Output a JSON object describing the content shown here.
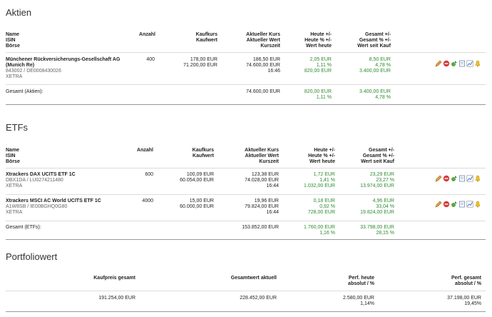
{
  "aktien": {
    "title": "Aktien",
    "headers": {
      "name": [
        "Name",
        "ISIN",
        "Börse"
      ],
      "anzahl": "Anzahl",
      "kauf": [
        "Kaufkurs",
        "Kaufwert"
      ],
      "aktuell": [
        "Aktueller Kurs",
        "Aktueller Wert",
        "Kurszeit"
      ],
      "heute": [
        "Heute +/-",
        "Heute % +/-",
        "Wert heute"
      ],
      "gesamt": [
        "Gesamt +/-",
        "Gesamt % +/-",
        "Wert seit Kauf"
      ]
    },
    "rows": [
      {
        "name": "Münchener Rückversicherungs-Gesellschaft AG",
        "name2": "(Munich Re)",
        "isin": "843002 / DE0008430026",
        "boerse": "XETRA",
        "anzahl": "400",
        "kauf": [
          "178,00 EUR",
          "71.200,00 EUR"
        ],
        "aktuell": [
          "186,50 EUR",
          "74.600,00 EUR",
          "16:46"
        ],
        "heute": [
          "2,05 EUR",
          "1,11 %",
          "820,00 EUR"
        ],
        "gesamt": [
          "8,50 EUR",
          "4,78 %",
          "3.400,00 EUR"
        ]
      }
    ],
    "total": {
      "label": "Gesamt (Aktien):",
      "aktuell": "74.600,00 EUR",
      "heute": [
        "820,00 EUR",
        "1,11 %"
      ],
      "gesamt": [
        "3.400,00 EUR",
        "4,78 %"
      ]
    }
  },
  "etfs": {
    "title": "ETFs",
    "headers": {
      "name": [
        "Name",
        "ISIN",
        "Börse"
      ],
      "anzahl": "Anzahl",
      "kauf": [
        "Kaufkurs",
        "Kaufwert"
      ],
      "aktuell": [
        "Aktueller Kurs",
        "Aktueller Wert",
        "Kurszeit"
      ],
      "heute": [
        "Heute +/-",
        "Heute % +/-",
        "Wert heute"
      ],
      "gesamt": [
        "Gesamt +/-",
        "Gesamt % +/-",
        "Wert seit Kauf"
      ]
    },
    "rows": [
      {
        "name": "Xtrackers DAX UCITS ETF 1C",
        "isin": "DBX1DA / LU0274211480",
        "boerse": "XETRA",
        "anzahl": "600",
        "kauf": [
          "100,09 EUR",
          "60.054,00 EUR"
        ],
        "aktuell": [
          "123,38 EUR",
          "74.028,00 EUR",
          "16:44"
        ],
        "heute": [
          "1,72 EUR",
          "1,41 %",
          "1.032,00 EUR"
        ],
        "gesamt": [
          "23,29 EUR",
          "23,27 %",
          "13.974,00 EUR"
        ]
      },
      {
        "name": "Xtrackers MSCI AC World UCITS ETF 1C",
        "isin": "A1W8SB / IE00BGHQ0G80",
        "boerse": "XETRA",
        "anzahl": "4000",
        "kauf": [
          "15,00 EUR",
          "60.000,00 EUR"
        ],
        "aktuell": [
          "19,96 EUR",
          "79.824,00 EUR",
          "16:44"
        ],
        "heute": [
          "0,18 EUR",
          "0,92 %",
          "728,00 EUR"
        ],
        "gesamt": [
          "4,96 EUR",
          "33,04 %",
          "19.824,00 EUR"
        ]
      }
    ],
    "total": {
      "label": "Gesamt (ETFs):",
      "aktuell": "153.852,00 EUR",
      "heute": [
        "1.760,00 EUR",
        "1,16 %"
      ],
      "gesamt": [
        "33.798,00 EUR",
        "28,15 %"
      ]
    }
  },
  "portfolio": {
    "title": "Portfoliowert",
    "headers": {
      "kaufpreis": "Kaufpreis gesamt",
      "gesamtwert": "Gesamtwert aktuell",
      "perf_heute": [
        "Perf. heute",
        "absolut / %"
      ],
      "perf_gesamt": [
        "Perf. gesamt",
        "absolut / %"
      ]
    },
    "values": {
      "kaufpreis": "191.254,00 EUR",
      "gesamtwert": "228.452,00 EUR",
      "perf_heute": [
        "2.580,00 EUR",
        "1,14%"
      ],
      "perf_gesamt": [
        "37.198,00 EUR",
        "19,45%"
      ]
    }
  },
  "icons": [
    "edit-icon",
    "delete-icon",
    "buy-sell-icon",
    "note-icon",
    "chart-icon",
    "alert-icon"
  ],
  "colors": {
    "positive": "#2e8b2e",
    "rule": "#dcdcdc"
  }
}
